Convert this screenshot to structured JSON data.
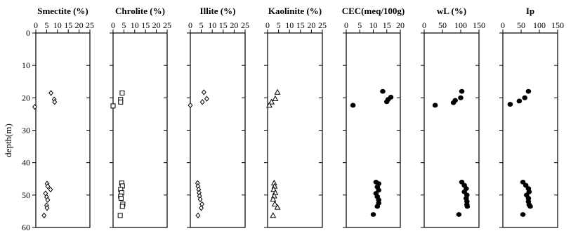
{
  "chart_data": {
    "type": "scatter",
    "ylabel": "depth(m)",
    "y_ticks": [
      "0",
      "10",
      "20",
      "30",
      "40",
      "50",
      "60"
    ],
    "ylim": [
      0,
      60
    ],
    "y_inverted": true,
    "grid": false,
    "panels": [
      {
        "title": "Smectite (%)",
        "x_ticks": [
          "0",
          "5",
          "10",
          "15",
          "20",
          "25"
        ],
        "xlim": [
          0,
          25
        ],
        "marker": "diamond-open",
        "points": [
          {
            "x": 7,
            "y": 18.5
          },
          {
            "x": 8.5,
            "y": 20.5
          },
          {
            "x": 8.7,
            "y": 21.3
          },
          {
            "x": -0.5,
            "y": 22.8
          },
          {
            "x": 5.2,
            "y": 46.5
          },
          {
            "x": 5.5,
            "y": 47.3
          },
          {
            "x": 6.8,
            "y": 48.3
          },
          {
            "x": 4.5,
            "y": 49.5
          },
          {
            "x": 5,
            "y": 50.6
          },
          {
            "x": 5.5,
            "y": 51.5
          },
          {
            "x": 5,
            "y": 53.2
          },
          {
            "x": 5.2,
            "y": 54
          },
          {
            "x": 3.8,
            "y": 56.3
          }
        ]
      },
      {
        "title": "Chrolite (%)",
        "x_ticks": [
          "0",
          "5",
          "10",
          "15",
          "20",
          "25"
        ],
        "xlim": [
          0,
          25
        ],
        "marker": "square-open",
        "points": [
          {
            "x": 4.2,
            "y": 18.5
          },
          {
            "x": 3.5,
            "y": 20.5
          },
          {
            "x": 3.5,
            "y": 21.3
          },
          {
            "x": 0,
            "y": 22.5
          },
          {
            "x": 4,
            "y": 46.3
          },
          {
            "x": 4.3,
            "y": 47.2
          },
          {
            "x": 3.5,
            "y": 48.3
          },
          {
            "x": 4,
            "y": 49.3
          },
          {
            "x": 3.5,
            "y": 50.3
          },
          {
            "x": 3.7,
            "y": 51
          },
          {
            "x": 4.5,
            "y": 52.8
          },
          {
            "x": 4.3,
            "y": 53.5
          },
          {
            "x": 3.3,
            "y": 56.3
          }
        ]
      },
      {
        "title": "Illite (%)",
        "x_ticks": [
          "0",
          "5",
          "10",
          "15",
          "20",
          "25"
        ],
        "xlim": [
          0,
          25
        ],
        "marker": "diamond-open",
        "points": [
          {
            "x": 6.2,
            "y": 18.3
          },
          {
            "x": 7.5,
            "y": 20.3
          },
          {
            "x": 5.5,
            "y": 21.3
          },
          {
            "x": 0,
            "y": 22.3
          },
          {
            "x": 3.3,
            "y": 46.3
          },
          {
            "x": 3.5,
            "y": 47.3
          },
          {
            "x": 3.8,
            "y": 48.3
          },
          {
            "x": 4,
            "y": 49.3
          },
          {
            "x": 4.2,
            "y": 50.3
          },
          {
            "x": 4.5,
            "y": 51.3
          },
          {
            "x": 5.3,
            "y": 52.8
          },
          {
            "x": 5,
            "y": 54
          },
          {
            "x": 3.5,
            "y": 56.3
          }
        ]
      },
      {
        "title": "Kaolinite (%)",
        "x_ticks": [
          "0",
          "5",
          "10",
          "15",
          "20",
          "25"
        ],
        "xlim": [
          0,
          25
        ],
        "marker": "triangle-open",
        "points": [
          {
            "x": 4.5,
            "y": 18.3
          },
          {
            "x": 3.5,
            "y": 20.3
          },
          {
            "x": 1.8,
            "y": 21.3
          },
          {
            "x": 0.8,
            "y": 22.3
          },
          {
            "x": 3,
            "y": 46.3
          },
          {
            "x": 3.2,
            "y": 47.3
          },
          {
            "x": 2.8,
            "y": 48.3
          },
          {
            "x": 3.5,
            "y": 49.3
          },
          {
            "x": 3,
            "y": 50.3
          },
          {
            "x": 2.5,
            "y": 51.3
          },
          {
            "x": 3.3,
            "y": 52.8
          },
          {
            "x": 4.5,
            "y": 53.8
          },
          {
            "x": 2.5,
            "y": 56.3
          }
        ]
      },
      {
        "title": "CEC(meq/100g)",
        "x_ticks": [
          "0",
          "5",
          "10",
          "15",
          "20"
        ],
        "xlim": [
          0,
          20
        ],
        "marker": "circle-filled",
        "points": [
          {
            "x": 13.5,
            "y": 18
          },
          {
            "x": 16.5,
            "y": 19.8
          },
          {
            "x": 15.5,
            "y": 20.5
          },
          {
            "x": 15,
            "y": 21.2
          },
          {
            "x": 2.5,
            "y": 22.3
          },
          {
            "x": 11,
            "y": 46
          },
          {
            "x": 12,
            "y": 46.5
          },
          {
            "x": 11.5,
            "y": 47.5
          },
          {
            "x": 12,
            "y": 48.5
          },
          {
            "x": 11,
            "y": 49.5
          },
          {
            "x": 11.5,
            "y": 50.5
          },
          {
            "x": 12,
            "y": 51.5
          },
          {
            "x": 12,
            "y": 52.5
          },
          {
            "x": 11.5,
            "y": 53.5
          },
          {
            "x": 10,
            "y": 56
          }
        ]
      },
      {
        "title": "wL (%)",
        "x_ticks": [
          "0",
          "50",
          "100",
          "150"
        ],
        "xlim": [
          0,
          150
        ],
        "marker": "circle-filled",
        "points": [
          {
            "x": 103,
            "y": 18
          },
          {
            "x": 100,
            "y": 20
          },
          {
            "x": 85,
            "y": 20.8
          },
          {
            "x": 80,
            "y": 21.5
          },
          {
            "x": 30,
            "y": 22.3
          },
          {
            "x": 103,
            "y": 46
          },
          {
            "x": 110,
            "y": 47
          },
          {
            "x": 115,
            "y": 48
          },
          {
            "x": 110,
            "y": 49
          },
          {
            "x": 117,
            "y": 50
          },
          {
            "x": 115,
            "y": 51
          },
          {
            "x": 117,
            "y": 52
          },
          {
            "x": 117,
            "y": 53
          },
          {
            "x": 118,
            "y": 53.5
          },
          {
            "x": 95,
            "y": 56
          }
        ]
      },
      {
        "title": "Ip",
        "x_ticks": [
          "0",
          "50",
          "100",
          "150"
        ],
        "xlim": [
          0,
          150
        ],
        "marker": "circle-filled",
        "points": [
          {
            "x": 70,
            "y": 18
          },
          {
            "x": 60,
            "y": 20
          },
          {
            "x": 45,
            "y": 21
          },
          {
            "x": 20,
            "y": 22
          },
          {
            "x": 55,
            "y": 46
          },
          {
            "x": 63,
            "y": 47
          },
          {
            "x": 70,
            "y": 48
          },
          {
            "x": 72,
            "y": 49
          },
          {
            "x": 65,
            "y": 50
          },
          {
            "x": 70,
            "y": 51
          },
          {
            "x": 70,
            "y": 52
          },
          {
            "x": 72,
            "y": 53
          },
          {
            "x": 75,
            "y": 53.5
          },
          {
            "x": 55,
            "y": 56
          }
        ]
      }
    ]
  }
}
